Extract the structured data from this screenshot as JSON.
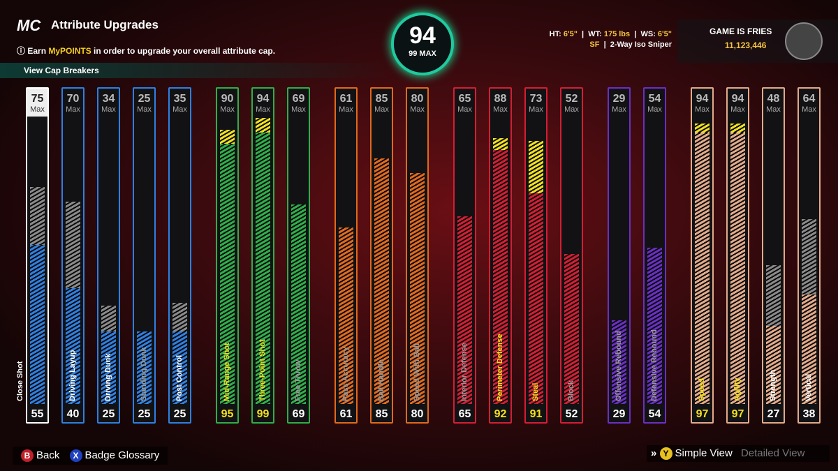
{
  "header": {
    "logo": "MC",
    "title": "Attribute Upgrades",
    "info": [
      "Earn ",
      "MyPOINTS",
      " in order to upgrade your overall attribute cap."
    ]
  },
  "overall": {
    "value": 94,
    "max": "99 MAX"
  },
  "player": {
    "height_label": "HT:",
    "height": "6'5\"",
    "weight_label": "WT:",
    "weight": "175 lbs",
    "wingspan_label": "WS:",
    "wingspan": "6'5\"",
    "position": "SF",
    "build": "2-Way Iso Sniper",
    "gamertag": "GAME IS FRIES",
    "vc": "11,123,446"
  },
  "cap_breakers": "View Cap Breakers",
  "max_label": "Max",
  "groups": [
    {
      "color": "#2f7fe0",
      "attributes": [
        {
          "name": "Close Shot",
          "cap": 75,
          "value": 55
        },
        {
          "name": "Driving Layup",
          "cap": 70,
          "value": 40
        },
        {
          "name": "Driving Dunk",
          "cap": 34,
          "value": 25
        },
        {
          "name": "Standing Dunk",
          "cap": 25,
          "value": 25
        },
        {
          "name": "Post Control",
          "cap": 35,
          "value": 25
        }
      ]
    },
    {
      "color": "#2fae4a",
      "attributes": [
        {
          "name": "Mid-Range Shot",
          "cap": 90,
          "value": 95
        },
        {
          "name": "Three-Point Shot",
          "cap": 94,
          "value": 99
        },
        {
          "name": "Free Throw",
          "cap": 69,
          "value": 69
        }
      ]
    },
    {
      "color": "#e0691e",
      "attributes": [
        {
          "name": "Pass Accuracy",
          "cap": 61,
          "value": 61
        },
        {
          "name": "Ball Handle",
          "cap": 85,
          "value": 85
        },
        {
          "name": "Speed With Ball",
          "cap": 80,
          "value": 80
        }
      ]
    },
    {
      "color": "#d41e34",
      "attributes": [
        {
          "name": "Interior Defense",
          "cap": 65,
          "value": 65
        },
        {
          "name": "Perimeter Defense",
          "cap": 88,
          "value": 92
        },
        {
          "name": "Steal",
          "cap": 73,
          "value": 91
        },
        {
          "name": "Block",
          "cap": 52,
          "value": 52
        }
      ]
    },
    {
      "color": "#6a2fc4",
      "attributes": [
        {
          "name": "Offensive Rebound",
          "cap": 29,
          "value": 29
        },
        {
          "name": "Defensive Rebound",
          "cap": 54,
          "value": 54
        }
      ]
    },
    {
      "color": "#e3aa8a",
      "attributes": [
        {
          "name": "Speed",
          "cap": 94,
          "value": 97
        },
        {
          "name": "Agility",
          "cap": 94,
          "value": 97
        },
        {
          "name": "Strength",
          "cap": 48,
          "value": 27
        },
        {
          "name": "Vertical",
          "cap": 64,
          "value": 38
        }
      ]
    }
  ],
  "footer": {
    "back_key": "B",
    "back": "Back",
    "glossary_key": "X",
    "glossary": "Badge Glossary",
    "simple_key": "Y",
    "simple": "Simple View",
    "detailed": "Detailed View"
  }
}
